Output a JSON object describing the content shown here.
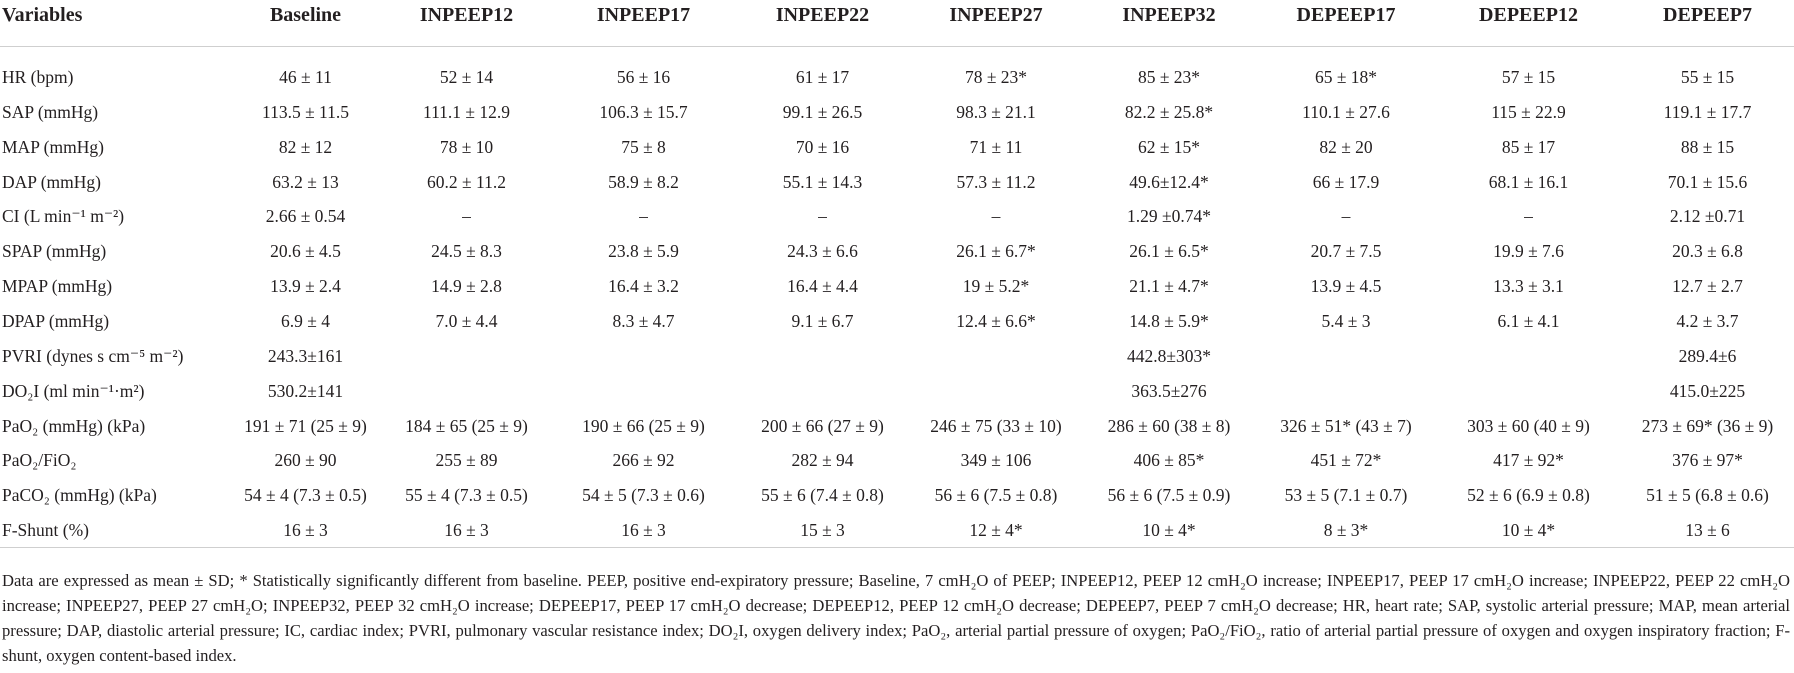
{
  "table": {
    "header": [
      "Variables",
      "Baseline",
      "INPEEP12",
      "INPEEP17",
      "INPEEP22",
      "INPEEP27",
      "INPEEP32",
      "DEPEEP17",
      "DEPEEP12",
      "DEPEEP7"
    ],
    "rows": [
      [
        "HR (bpm)",
        "46 ± 11",
        "52 ± 14",
        "56 ± 16",
        "61 ± 17",
        "78 ± 23*",
        "85 ± 23*",
        "65 ± 18*",
        "57 ± 15",
        "55 ± 15"
      ],
      [
        "SAP (mmHg)",
        "113.5 ± 11.5",
        "111.1 ± 12.9",
        "106.3 ± 15.7",
        "99.1 ± 26.5",
        "98.3 ± 21.1",
        "82.2 ± 25.8*",
        "110.1 ± 27.6",
        "115 ± 22.9",
        "119.1 ± 17.7"
      ],
      [
        "MAP (mmHg)",
        "82 ± 12",
        "78 ± 10",
        "75 ± 8",
        "70 ± 16",
        "71 ± 11",
        "62 ± 15*",
        "82 ± 20",
        "85 ± 17",
        "88 ± 15"
      ],
      [
        "DAP (mmHg)",
        "63.2 ± 13",
        "60.2 ± 11.2",
        "58.9 ± 8.2",
        "55.1 ± 14.3",
        "57.3 ± 11.2",
        "49.6±12.4*",
        "66 ± 17.9",
        "68.1 ± 16.1",
        "70.1 ± 15.6"
      ],
      [
        "CI (L min⁻¹ m⁻²)",
        "2.66 ± 0.54",
        "–",
        "–",
        "–",
        "–",
        "1.29 ±0.74*",
        "–",
        "–",
        "2.12 ±0.71"
      ],
      [
        "SPAP (mmHg)",
        "20.6 ± 4.5",
        "24.5 ± 8.3",
        "23.8 ± 5.9",
        "24.3 ± 6.6",
        "26.1 ± 6.7*",
        "26.1 ± 6.5*",
        "20.7 ± 7.5",
        "19.9 ± 7.6",
        "20.3 ± 6.8"
      ],
      [
        "MPAP (mmHg)",
        "13.9 ± 2.4",
        "14.9 ± 2.8",
        "16.4 ± 3.2",
        "16.4 ± 4.4",
        "19 ± 5.2*",
        "21.1 ± 4.7*",
        "13.9 ± 4.5",
        "13.3 ± 3.1",
        "12.7 ± 2.7"
      ],
      [
        "DPAP (mmHg)",
        "6.9 ± 4",
        "7.0 ± 4.4",
        "8.3 ± 4.7",
        "9.1 ± 6.7",
        "12.4 ± 6.6*",
        "14.8 ± 5.9*",
        "5.4 ± 3",
        "6.1 ± 4.1",
        "4.2 ± 3.7"
      ],
      [
        "PVRI (dynes s cm⁻⁵ m⁻²)",
        "243.3±161",
        null,
        null,
        null,
        null,
        "442.8±303*",
        null,
        null,
        "289.4±6"
      ],
      [
        "DO₂I (ml min⁻¹·m²)",
        "530.2±141",
        null,
        null,
        null,
        null,
        "363.5±276",
        null,
        null,
        "415.0±225"
      ],
      [
        "PaO₂ (mmHg) (kPa)",
        "191 ± 71 (25 ± 9)",
        "184 ± 65 (25 ± 9)",
        "190 ± 66 (25 ± 9)",
        "200 ± 66 (27 ± 9)",
        "246 ± 75 (33 ± 10)",
        "286 ± 60 (38 ± 8)",
        "326 ± 51* (43 ± 7)",
        "303 ± 60 (40 ± 9)",
        "273 ± 69* (36 ± 9)"
      ],
      [
        "PaO₂/FiO₂",
        "260 ± 90",
        "255 ± 89",
        "266 ± 92",
        "282 ± 94",
        "349 ± 106",
        "406 ± 85*",
        "451 ± 72*",
        "417 ± 92*",
        "376 ± 97*"
      ],
      [
        "PaCO₂ (mmHg) (kPa)",
        "54 ± 4 (7.3 ± 0.5)",
        "55 ± 4 (7.3 ± 0.5)",
        "54 ± 5 (7.3 ± 0.6)",
        "55 ± 6 (7.4 ± 0.8)",
        "56 ± 6 (7.5 ± 0.8)",
        "56 ± 6 (7.5 ± 0.9)",
        "53 ± 5 (7.1 ± 0.7)",
        "52 ± 6 (6.9 ± 0.8)",
        "51 ± 5 (6.8 ± 0.6)"
      ],
      [
        "F-Shunt (%)",
        "16 ± 3",
        "16 ± 3",
        "16 ± 3",
        "15 ± 3",
        "12 ± 4*",
        "10 ± 4*",
        "8 ± 3*",
        "10 ± 4*",
        "13 ± 6"
      ]
    ],
    "footnote": "Data are expressed as mean ± SD; * Statistically significantly different from baseline. PEEP, positive end-expiratory pressure; Baseline, 7 cmH₂O of PEEP; INPEEP12, PEEP 12 cmH₂O increase; INPEEP17, PEEP 17 cmH₂O increase; INPEEP22, PEEP 22 cmH₂O increase; INPEEP27, PEEP 27 cmH₂O; INPEEP32, PEEP 32 cmH₂O increase; DEPEEP17, PEEP 17 cmH₂O decrease; DEPEEP12, PEEP 12 cmH₂O decrease; DEPEEP7, PEEP 7 cmH₂O decrease; HR, heart rate; SAP, systolic arterial pressure; MAP, mean arterial pressure; DAP, diastolic arterial pressure; IC, cardiac index; PVRI, pulmonary vascular resistance index; DO₂I, oxygen delivery index; PaO₂, arterial partial pressure of oxygen; PaO₂/FiO₂, ratio of arterial partial pressure of oxygen and oxygen inspiratory fraction; F-shunt, oxygen content-based index."
  }
}
